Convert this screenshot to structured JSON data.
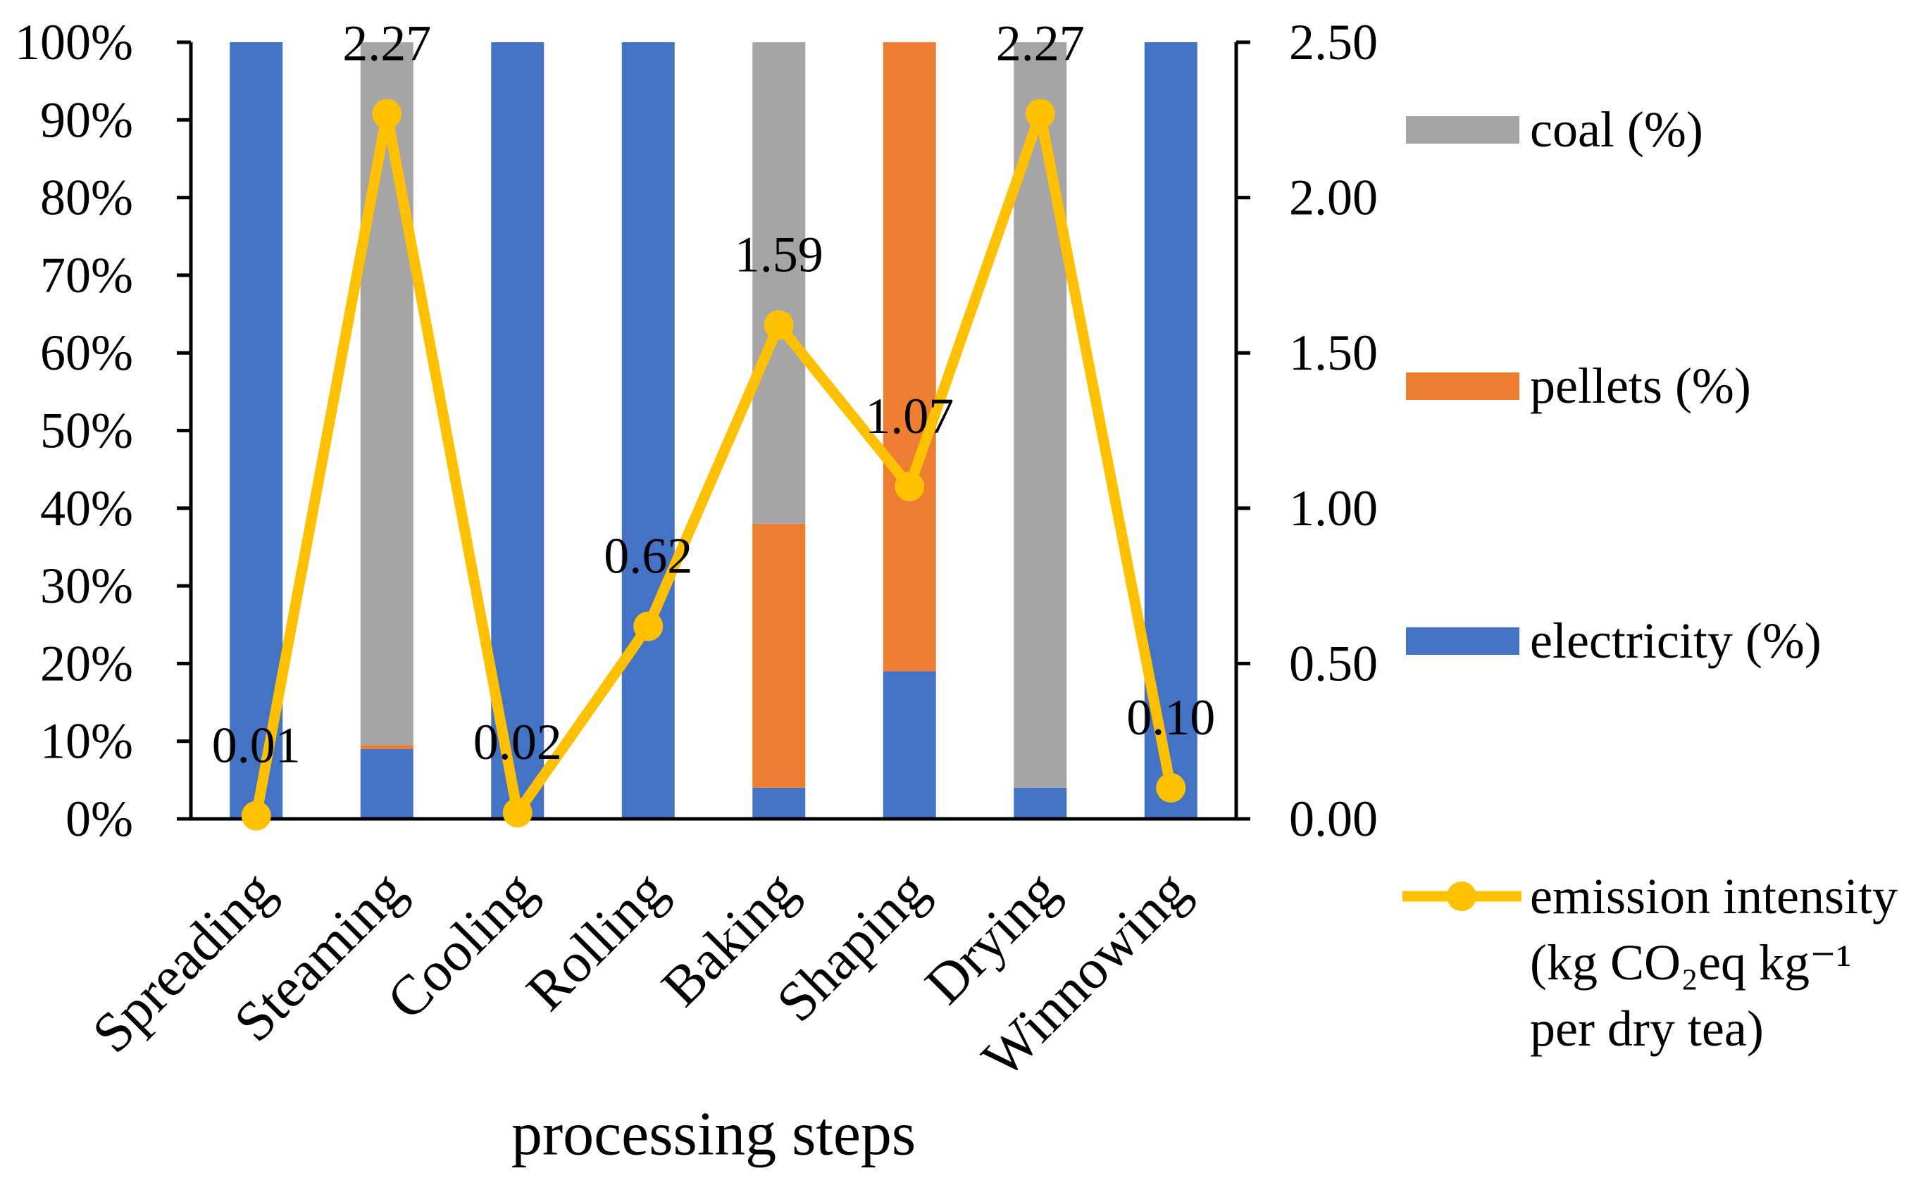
{
  "chart_data": {
    "type": "bar",
    "categories": [
      "Spreading",
      "Steaming",
      "Cooling",
      "Rolling",
      "Baking",
      "Shaping",
      "Drying",
      "Winnowing"
    ],
    "series": [
      {
        "name": "electricity (%)",
        "type": "bar",
        "stacked": true,
        "axis": "left",
        "color": "#4472C4",
        "values": [
          100,
          9,
          100,
          100,
          4,
          19,
          4,
          100
        ]
      },
      {
        "name": "pellets (%)",
        "type": "bar",
        "stacked": true,
        "axis": "left",
        "color": "#ED7D31",
        "values": [
          0,
          0.5,
          0,
          0,
          34,
          81,
          0,
          0
        ]
      },
      {
        "name": "coal (%)",
        "type": "bar",
        "stacked": true,
        "axis": "left",
        "color": "#A5A5A5",
        "values": [
          0,
          90.5,
          0,
          0,
          62,
          0,
          96,
          0
        ]
      },
      {
        "name": "emission intensity",
        "unit": [
          "(kg CO₂eq kg⁻¹",
          "per dry tea)"
        ],
        "type": "line",
        "axis": "right",
        "marker": "circle",
        "color": "#FFC000",
        "values": [
          0.01,
          2.27,
          0.02,
          0.62,
          1.59,
          1.07,
          2.27,
          0.1
        ],
        "data_labels": [
          "0.01",
          "2.27",
          "0.02",
          "0.62",
          "1.59",
          "1.07",
          "2.27",
          "0.10"
        ]
      }
    ],
    "xlabel": "processing steps",
    "y_left": {
      "ylim": [
        0,
        100
      ],
      "ticks": [
        "0%",
        "10%",
        "20%",
        "30%",
        "40%",
        "50%",
        "60%",
        "70%",
        "80%",
        "90%",
        "100%"
      ]
    },
    "y_right": {
      "ylim": [
        0,
        2.5
      ],
      "ticks": [
        "0.00",
        "0.50",
        "1.00",
        "1.50",
        "2.00",
        "2.50"
      ]
    },
    "grid": false,
    "legend": "right"
  }
}
